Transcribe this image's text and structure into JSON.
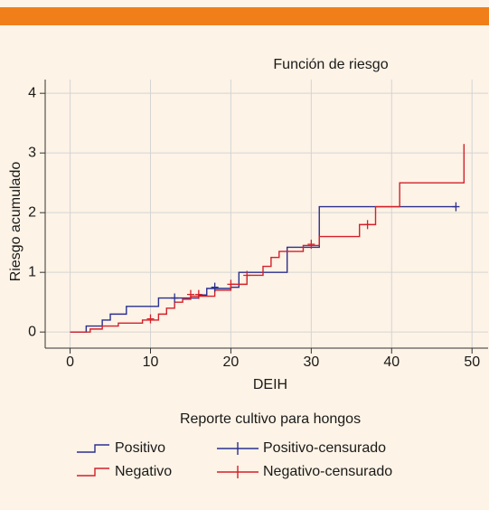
{
  "chart_data": {
    "type": "step",
    "title": "Función de riesgo",
    "x_label": "DEIH",
    "y_label": "Riesgo acumulado",
    "legend_title": "Reporte cultivo para hongos",
    "xlim": [
      -3.1,
      52
    ],
    "ylim": [
      -0.27,
      4.23
    ],
    "xticks": [
      0,
      10,
      20,
      30,
      40,
      50
    ],
    "yticks": [
      0,
      1,
      2,
      3,
      4
    ],
    "grid": true,
    "series": [
      {
        "name": "Positivo",
        "color": "#2b2f8f",
        "x": [
          0,
          2,
          4,
          5,
          7,
          11,
          16,
          17,
          20,
          21,
          27,
          31,
          48
        ],
        "values": [
          0,
          0.1,
          0.2,
          0.3,
          0.43,
          0.57,
          0.62,
          0.73,
          0.75,
          1.0,
          1.42,
          2.1,
          2.1
        ]
      },
      {
        "name": "Negativo",
        "color": "#d4202a",
        "x": [
          0,
          2.5,
          4,
          6,
          9,
          11,
          12,
          13,
          14,
          15,
          18,
          20,
          22,
          24,
          25,
          26,
          29,
          31,
          36,
          38,
          41,
          49
        ],
        "values": [
          0,
          0.05,
          0.1,
          0.15,
          0.2,
          0.3,
          0.4,
          0.5,
          0.55,
          0.6,
          0.7,
          0.8,
          0.95,
          1.1,
          1.25,
          1.35,
          1.45,
          1.6,
          1.8,
          2.1,
          2.5,
          3.15
        ]
      }
    ],
    "censored": [
      {
        "name": "Positivo-censurado",
        "color": "#2b2f8f",
        "x": [
          13,
          18,
          48
        ],
        "values": [
          0.57,
          0.75,
          2.1
        ]
      },
      {
        "name": "Negativo-censurado",
        "color": "#d4202a",
        "x": [
          10,
          15,
          16,
          20,
          22,
          30,
          37
        ],
        "values": [
          0.22,
          0.63,
          0.63,
          0.8,
          0.95,
          1.47,
          1.8
        ]
      }
    ]
  }
}
